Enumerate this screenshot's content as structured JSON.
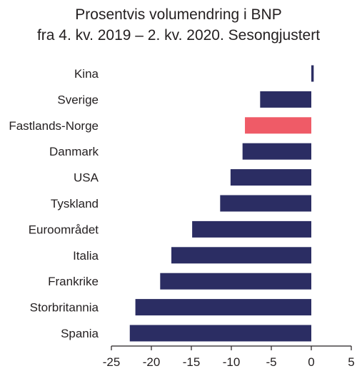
{
  "title_lines": [
    "Prosentvis volumendring i BNP",
    "fra 4. kv. 2019 – 2. kv. 2020. Sesongjustert"
  ],
  "chart_data": {
    "type": "bar",
    "orientation": "horizontal",
    "title": "Prosentvis volumendring i BNP fra 4. kv. 2019 – 2. kv. 2020. Sesongjustert",
    "categories": [
      "Kina",
      "Sverige",
      "Fastlands-Norge",
      "Danmark",
      "USA",
      "Tyskland",
      "Euroområdet",
      "Italia",
      "Frankrike",
      "Storbritannia",
      "Spania"
    ],
    "values": [
      0.3,
      -6.4,
      -8.3,
      -8.6,
      -10.1,
      -11.4,
      -14.9,
      -17.5,
      -18.9,
      -22.0,
      -22.7
    ],
    "xlim": [
      -25,
      5
    ],
    "xticks": [
      -25,
      -20,
      -15,
      -10,
      -5,
      0,
      5
    ],
    "xtick_labels": [
      "-25",
      "-20",
      "-15",
      "-10",
      "-5",
      "0",
      "5"
    ],
    "xlabel": "",
    "ylabel": "",
    "grid": false,
    "legend": "none",
    "colors": {
      "default": "#2b2d63",
      "highlight": "#ef5b67",
      "axis": "#231f20"
    },
    "highlight_category": "Fastlands-Norge"
  }
}
